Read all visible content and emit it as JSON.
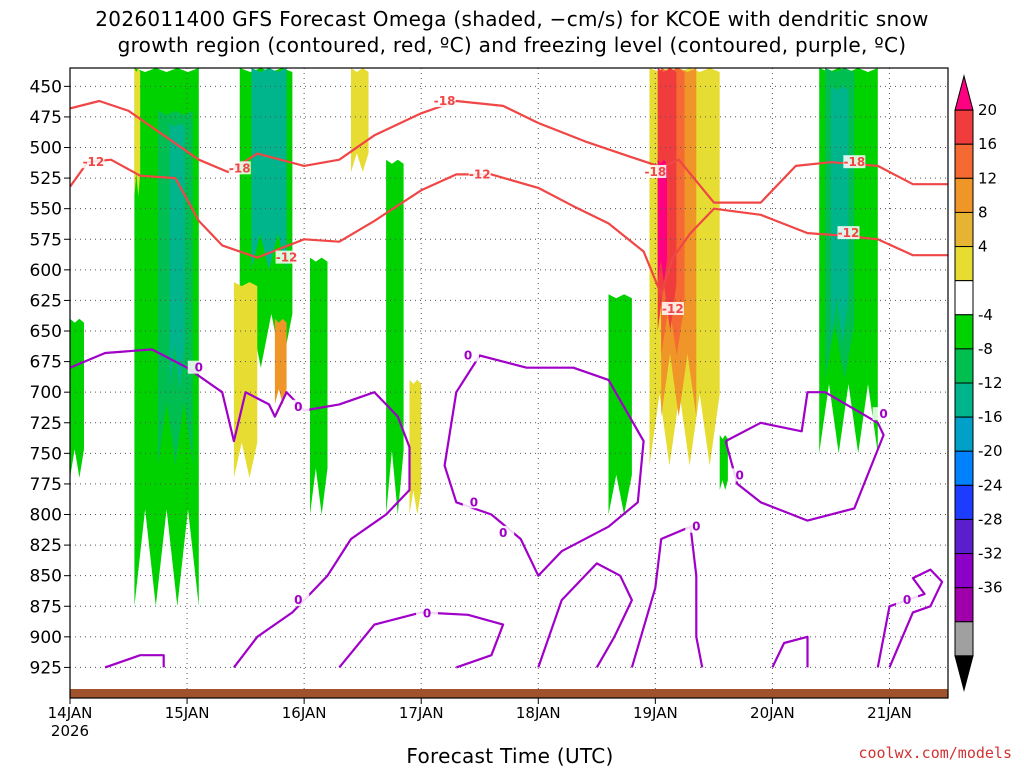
{
  "title": {
    "line1": "2026011400 GFS Forecast Omega (shaded, −cm/s) for KCOE with dendritic snow",
    "line2": "growth region (contoured, red, ºC) and freezing level (contoured, purple, ºC)"
  },
  "credit": "coolwx.com/models",
  "chart_data": {
    "type": "heatmap",
    "xlabel": "Forecast Time (UTC)",
    "ylabel": "",
    "x_ticks": [
      "14JAN",
      "15JAN",
      "16JAN",
      "17JAN",
      "18JAN",
      "19JAN",
      "20JAN",
      "21JAN"
    ],
    "x_year": "2026",
    "x_range_days": [
      0,
      7.5
    ],
    "y_ticks": [
      "450",
      "475",
      "500",
      "525",
      "550",
      "575",
      "600",
      "625",
      "650",
      "675",
      "700",
      "725",
      "750",
      "775",
      "800",
      "825",
      "850",
      "875",
      "900",
      "925"
    ],
    "y_range_hpa": [
      435,
      950
    ],
    "grid": true,
    "colorbar": {
      "labels": [
        "20",
        "16",
        "12",
        "8",
        "4",
        "-4",
        "-8",
        "-12",
        "-16",
        "-20",
        "-24",
        "-28",
        "-32",
        "-36"
      ],
      "colors": [
        "#ff0080",
        "#f03c3c",
        "#f56a32",
        "#f09628",
        "#e6b432",
        "#e6dc32",
        "#ffffff",
        "#00d200",
        "#00be50",
        "#00b48c",
        "#00a0c8",
        "#0082ff",
        "#1e3cff",
        "#5a1ecd",
        "#8c00c8",
        "#a000aa",
        "#a0a0a0",
        "#000000"
      ]
    },
    "omega_regions": [
      {
        "color": "#00d200",
        "x0": 0.0,
        "x1": 0.12,
        "p0": 640,
        "p1": 770
      },
      {
        "color": "#00d200",
        "x0": 0.55,
        "x1": 1.1,
        "p0": 435,
        "p1": 875
      },
      {
        "color": "#00be50",
        "x0": 0.75,
        "x1": 1.05,
        "p0": 470,
        "p1": 760
      },
      {
        "color": "#00b48c",
        "x0": 0.85,
        "x1": 0.98,
        "p0": 480,
        "p1": 700
      },
      {
        "color": "#00d200",
        "x0": 1.45,
        "x1": 1.9,
        "p0": 435,
        "p1": 680
      },
      {
        "color": "#00b48c",
        "x0": 1.55,
        "x1": 1.85,
        "p0": 435,
        "p1": 600
      },
      {
        "color": "#00d200",
        "x0": 2.05,
        "x1": 2.2,
        "p0": 590,
        "p1": 800
      },
      {
        "color": "#00d200",
        "x0": 2.7,
        "x1": 2.85,
        "p0": 510,
        "p1": 800
      },
      {
        "color": "#e6dc32",
        "x0": 0.55,
        "x1": 0.6,
        "p0": 435,
        "p1": 540
      },
      {
        "color": "#e6dc32",
        "x0": 1.4,
        "x1": 1.6,
        "p0": 610,
        "p1": 770
      },
      {
        "color": "#f09628",
        "x0": 1.75,
        "x1": 1.85,
        "p0": 640,
        "p1": 710
      },
      {
        "color": "#e6dc32",
        "x0": 2.4,
        "x1": 2.55,
        "p0": 435,
        "p1": 520
      },
      {
        "color": "#e6dc32",
        "x0": 2.9,
        "x1": 3.0,
        "p0": 690,
        "p1": 800
      },
      {
        "color": "#00d200",
        "x0": 4.6,
        "x1": 4.8,
        "p0": 620,
        "p1": 800
      },
      {
        "color": "#e6dc32",
        "x0": 4.95,
        "x1": 5.55,
        "p0": 435,
        "p1": 760
      },
      {
        "color": "#f09628",
        "x0": 5.05,
        "x1": 5.35,
        "p0": 435,
        "p1": 720
      },
      {
        "color": "#f56a32",
        "x0": 5.05,
        "x1": 5.25,
        "p0": 435,
        "p1": 670
      },
      {
        "color": "#f03c3c",
        "x0": 5.02,
        "x1": 5.18,
        "p0": 435,
        "p1": 650
      },
      {
        "color": "#ff0080",
        "x0": 5.02,
        "x1": 5.1,
        "p0": 510,
        "p1": 610
      },
      {
        "color": "#00d200",
        "x0": 5.55,
        "x1": 5.62,
        "p0": 735,
        "p1": 780
      },
      {
        "color": "#00d200",
        "x0": 6.4,
        "x1": 6.9,
        "p0": 435,
        "p1": 750
      },
      {
        "color": "#00be50",
        "x0": 6.45,
        "x1": 6.7,
        "p0": 435,
        "p1": 690
      },
      {
        "color": "#00b48c",
        "x0": 6.5,
        "x1": 6.65,
        "p0": 450,
        "p1": 660
      }
    ],
    "contours": [
      {
        "name": "dgz_-18",
        "label": "-18",
        "color": "#f04646",
        "points": [
          [
            0,
            468
          ],
          [
            0.25,
            462
          ],
          [
            0.5,
            470
          ],
          [
            0.8,
            490
          ],
          [
            1.1,
            510
          ],
          [
            1.35,
            520
          ],
          [
            1.6,
            505
          ],
          [
            2.0,
            515
          ],
          [
            2.3,
            510
          ],
          [
            2.6,
            490
          ],
          [
            3.0,
            472
          ],
          [
            3.3,
            462
          ],
          [
            3.7,
            466
          ],
          [
            4.0,
            480
          ],
          [
            4.4,
            495
          ],
          [
            4.8,
            508
          ],
          [
            5.05,
            516
          ],
          [
            5.2,
            510
          ],
          [
            5.5,
            545
          ],
          [
            5.9,
            545
          ],
          [
            6.2,
            515
          ],
          [
            6.5,
            512
          ],
          [
            6.9,
            515
          ],
          [
            7.2,
            530
          ],
          [
            7.5,
            530
          ]
        ],
        "label_at": [
          [
            1.45,
            517
          ],
          [
            3.2,
            462
          ],
          [
            5.0,
            520
          ],
          [
            6.7,
            512
          ]
        ]
      },
      {
        "name": "dgz_-12",
        "label": "-12",
        "color": "#f04646",
        "points": [
          [
            0,
            532
          ],
          [
            0.15,
            512
          ],
          [
            0.35,
            510
          ],
          [
            0.6,
            523
          ],
          [
            0.9,
            525
          ],
          [
            1.1,
            560
          ],
          [
            1.3,
            580
          ],
          [
            1.6,
            590
          ],
          [
            2.0,
            575
          ],
          [
            2.3,
            577
          ],
          [
            2.6,
            560
          ],
          [
            3.0,
            535
          ],
          [
            3.3,
            522
          ],
          [
            3.6,
            522
          ],
          [
            4.0,
            533
          ],
          [
            4.3,
            548
          ],
          [
            4.6,
            562
          ],
          [
            4.9,
            585
          ],
          [
            5.05,
            620
          ],
          [
            5.15,
            590
          ],
          [
            5.3,
            570
          ],
          [
            5.5,
            550
          ],
          [
            5.9,
            555
          ],
          [
            6.3,
            570
          ],
          [
            6.6,
            572
          ],
          [
            6.9,
            575
          ],
          [
            7.2,
            588
          ],
          [
            7.5,
            588
          ]
        ],
        "label_at": [
          [
            0.2,
            512
          ],
          [
            1.85,
            590
          ],
          [
            3.5,
            522
          ],
          [
            5.15,
            632
          ],
          [
            6.65,
            570
          ]
        ]
      },
      {
        "name": "freezing_0a",
        "label": "0",
        "color": "#a000c8",
        "points": [
          [
            0,
            680
          ],
          [
            0.3,
            668
          ],
          [
            0.7,
            665
          ],
          [
            1.0,
            680
          ],
          [
            1.3,
            700
          ],
          [
            1.4,
            740
          ],
          [
            1.5,
            700
          ],
          [
            1.7,
            710
          ],
          [
            1.75,
            720
          ],
          [
            1.85,
            700
          ],
          [
            2.0,
            715
          ],
          [
            2.3,
            710
          ],
          [
            2.6,
            700
          ],
          [
            2.8,
            720
          ],
          [
            2.9,
            745
          ],
          [
            2.9,
            780
          ],
          [
            2.7,
            800
          ],
          [
            2.4,
            820
          ],
          [
            2.2,
            850
          ],
          [
            1.9,
            880
          ],
          [
            1.6,
            900
          ],
          [
            1.4,
            925
          ]
        ],
        "label_at": [
          [
            1.1,
            680
          ],
          [
            1.95,
            712
          ],
          [
            1.95,
            870
          ]
        ]
      },
      {
        "name": "freezing_0b",
        "label": "0",
        "color": "#a000c8",
        "points": [
          [
            3.3,
            700
          ],
          [
            3.5,
            670
          ],
          [
            3.9,
            680
          ],
          [
            4.3,
            680
          ],
          [
            4.6,
            690
          ],
          [
            4.9,
            740
          ],
          [
            4.85,
            790
          ],
          [
            4.6,
            810
          ],
          [
            4.2,
            830
          ],
          [
            4.0,
            850
          ],
          [
            3.85,
            820
          ],
          [
            3.6,
            800
          ],
          [
            3.3,
            790
          ],
          [
            3.2,
            760
          ],
          [
            3.3,
            700
          ]
        ],
        "label_at": [
          [
            3.4,
            670
          ],
          [
            3.45,
            790
          ],
          [
            3.7,
            815
          ]
        ]
      },
      {
        "name": "freezing_0c",
        "label": "0",
        "color": "#a000c8",
        "points": [
          [
            2.3,
            925
          ],
          [
            2.6,
            890
          ],
          [
            3.0,
            880
          ],
          [
            3.4,
            882
          ],
          [
            3.7,
            890
          ],
          [
            3.6,
            915
          ],
          [
            3.3,
            925
          ]
        ],
        "label_at": [
          [
            3.05,
            881
          ]
        ]
      },
      {
        "name": "freezing_0d",
        "label": "0",
        "color": "#a000c8",
        "points": [
          [
            4.0,
            925
          ],
          [
            4.2,
            870
          ],
          [
            4.5,
            840
          ],
          [
            4.7,
            850
          ],
          [
            4.8,
            870
          ],
          [
            4.65,
            900
          ],
          [
            4.5,
            925
          ]
        ],
        "label_at": []
      },
      {
        "name": "freezing_0e",
        "label": "0",
        "color": "#a000c8",
        "points": [
          [
            4.8,
            925
          ],
          [
            5.0,
            860
          ],
          [
            5.05,
            820
          ],
          [
            5.3,
            810
          ],
          [
            5.35,
            850
          ],
          [
            5.35,
            900
          ],
          [
            5.4,
            925
          ]
        ],
        "label_at": [
          [
            5.35,
            810
          ]
        ]
      },
      {
        "name": "freezing_0f",
        "label": "0",
        "color": "#a000c8",
        "points": [
          [
            5.6,
            740
          ],
          [
            5.9,
            725
          ],
          [
            6.25,
            732
          ],
          [
            6.3,
            700
          ],
          [
            6.45,
            700
          ],
          [
            6.9,
            725
          ],
          [
            6.95,
            735
          ],
          [
            6.7,
            795
          ],
          [
            6.3,
            805
          ],
          [
            5.9,
            790
          ],
          [
            5.7,
            775
          ],
          [
            5.6,
            740
          ]
        ],
        "label_at": [
          [
            5.72,
            768
          ],
          [
            6.95,
            718
          ]
        ]
      },
      {
        "name": "freezing_0g",
        "label": "0",
        "color": "#a000c8",
        "points": [
          [
            6.9,
            925
          ],
          [
            7.0,
            875
          ],
          [
            7.3,
            865
          ],
          [
            7.2,
            852
          ],
          [
            7.35,
            845
          ],
          [
            7.45,
            855
          ],
          [
            7.35,
            875
          ],
          [
            7.2,
            880
          ],
          [
            7.0,
            925
          ]
        ],
        "label_at": [
          [
            7.15,
            870
          ]
        ]
      },
      {
        "name": "freezing_0h",
        "label": "0",
        "color": "#a000c8",
        "points": [
          [
            6.0,
            925
          ],
          [
            6.1,
            905
          ],
          [
            6.3,
            900
          ],
          [
            6.3,
            925
          ]
        ],
        "label_at": []
      },
      {
        "name": "freezing_0i",
        "label": "0",
        "color": "#a000c8",
        "points": [
          [
            0.3,
            925
          ],
          [
            0.6,
            915
          ],
          [
            0.8,
            915
          ],
          [
            0.8,
            925
          ]
        ],
        "label_at": []
      }
    ],
    "ground_color": "#a0522d"
  }
}
